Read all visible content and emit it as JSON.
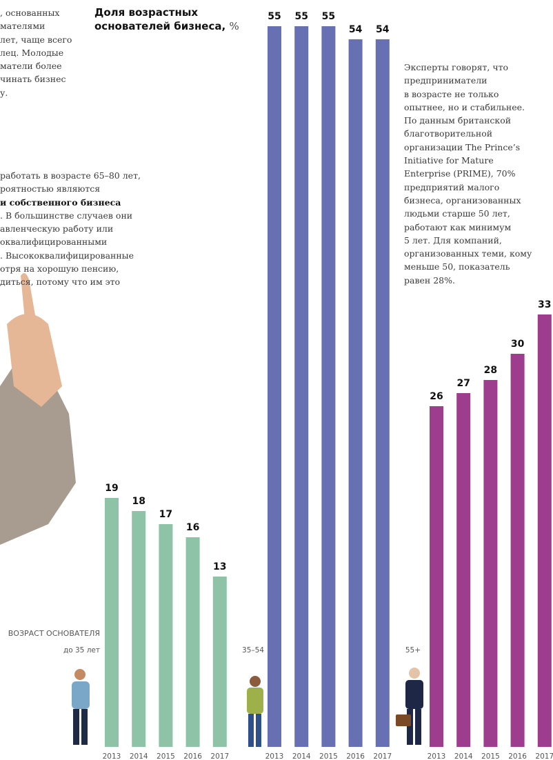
{
  "chart_data": {
    "type": "bar",
    "title": "Доля возрастных основателей бизнеса,",
    "unit": "%",
    "axis_label": "ВОЗРАСТ ОСНОВАТЕЛЯ",
    "groups": [
      {
        "name": "до 35 лет",
        "color": "#8ec3a8",
        "categories": [
          "2013",
          "2014",
          "2015",
          "2016",
          "2017"
        ],
        "values": [
          19,
          18,
          17,
          16,
          13
        ]
      },
      {
        "name": "35–54",
        "color": "#6870b4",
        "categories": [
          "2013",
          "2014",
          "2015",
          "2016",
          "2017"
        ],
        "values": [
          55,
          55,
          55,
          54,
          54
        ]
      },
      {
        "name": "55+",
        "color": "#9e3c8d",
        "categories": [
          "2013",
          "2014",
          "2015",
          "2016",
          "2017"
        ],
        "values": [
          26,
          27,
          28,
          30,
          33
        ]
      }
    ]
  },
  "text_left_top": [
    ", основанных",
    "мателями",
    "лет, чаще всего",
    "лец. Молодые",
    "матели более",
    "чинать бизнес",
    "у."
  ],
  "text_left_middle": [
    "работать в возрасте 65–80 лет,",
    "роятностью являются",
    "и собственного бизнеса",
    ". В большинстве случаев они",
    "авленческую работу или",
    "оквалифицированными",
    ". Высококвалифицированные",
    "отря на хорошую пенсию,",
    "диться, потому что им это"
  ],
  "text_right": [
    "Эксперты говорят, что",
    "предприниматели",
    "в возрасте не только",
    "опытнее, но и стабильнее.",
    "По данным британской",
    "благотворительной",
    "организации The Prince’s",
    "Initiative for Mature",
    "Enterprise (PRIME), 70%",
    "предприятий малого",
    "бизнеса, организованных",
    "людьми старше 50 лет,",
    "работают как минимум",
    "5 лет. Для компаний,",
    "организованных теми, кому",
    "меньше 50, показатель",
    "равен 28%."
  ]
}
